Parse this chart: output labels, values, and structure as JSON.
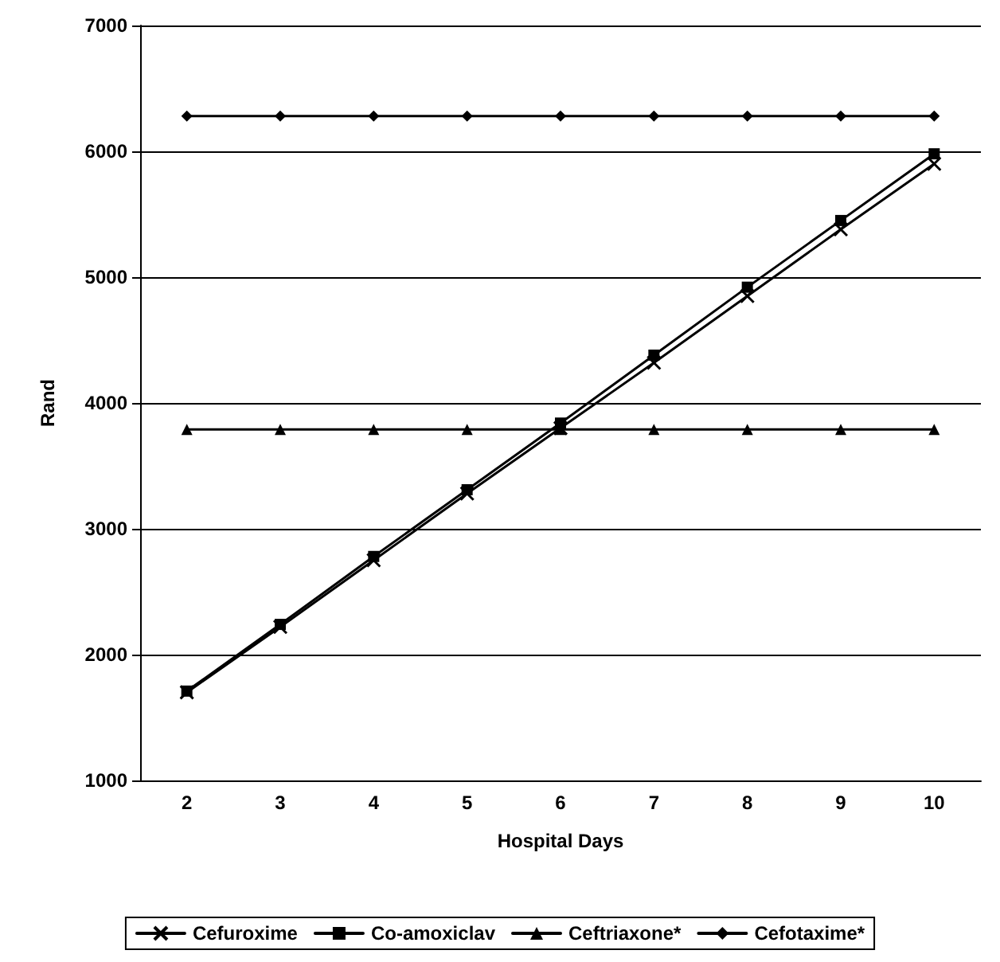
{
  "chart_data": {
    "type": "line",
    "xlabel": "Hospital Days",
    "ylabel": "Rand",
    "categories": [
      "2",
      "3",
      "4",
      "5",
      "6",
      "7",
      "8",
      "9",
      "10"
    ],
    "series": [
      {
        "name": "Cefuroxime",
        "color": "#000000",
        "marker": "cross",
        "values": [
          1700,
          2220,
          2750,
          3280,
          3800,
          4320,
          4850,
          5380,
          5900
        ]
      },
      {
        "name": "Co-amoxiclav",
        "color": "#000000",
        "marker": "square",
        "values": [
          1710,
          2240,
          2780,
          3310,
          3840,
          4380,
          4920,
          5450,
          5980
        ]
      },
      {
        "name": "Ceftriaxone*",
        "color": "#000000",
        "marker": "triangle",
        "values": [
          3790,
          3790,
          3790,
          3790,
          3790,
          3790,
          3790,
          3790,
          3790
        ]
      },
      {
        "name": "Cefotaxime*",
        "color": "#000000",
        "marker": "diamond",
        "values": [
          6280,
          6280,
          6280,
          6280,
          6280,
          6280,
          6280,
          6280,
          6280
        ]
      }
    ],
    "ylim": [
      1000,
      7000
    ],
    "yticks": [
      1000,
      2000,
      3000,
      4000,
      5000,
      6000,
      7000
    ],
    "grid": "y",
    "legend": "bottom"
  }
}
